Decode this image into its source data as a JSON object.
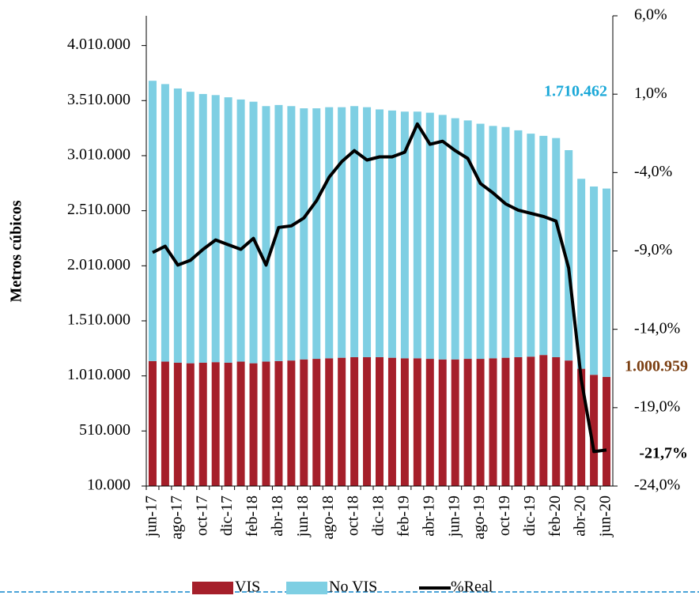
{
  "chart_data": {
    "type": "bar_line",
    "y_axis_label": "Metros cúbicos",
    "categories": [
      "jun-17",
      null,
      "ago-17",
      null,
      "oct-17",
      null,
      "dic-17",
      null,
      "feb-18",
      null,
      "abr-18",
      null,
      "jun-18",
      null,
      "ago-18",
      null,
      "oct-18",
      null,
      "dic-18",
      null,
      "feb-19",
      null,
      "abr-19",
      null,
      "jun-19",
      null,
      "ago-19",
      null,
      "oct-19",
      null,
      "dic-19",
      null,
      "feb-20",
      null,
      "abr-20",
      null,
      "jun-20"
    ],
    "series": [
      {
        "name": "VIS",
        "color": "#a51f2a",
        "stack": true,
        "values": [
          1145000,
          1140000,
          1130000,
          1125000,
          1130000,
          1135000,
          1130000,
          1140000,
          1125000,
          1140000,
          1145000,
          1150000,
          1160000,
          1165000,
          1170000,
          1175000,
          1180000,
          1180000,
          1180000,
          1175000,
          1170000,
          1170000,
          1165000,
          1160000,
          1160000,
          1165000,
          1165000,
          1170000,
          1175000,
          1180000,
          1185000,
          1200000,
          1180000,
          1150000,
          1075000,
          1020000,
          1000959
        ],
        "value_labels": [
          null,
          null,
          null,
          null,
          null,
          null,
          null,
          null,
          null,
          null,
          null,
          null,
          null,
          null,
          null,
          null,
          null,
          null,
          null,
          null,
          null,
          null,
          null,
          null,
          null,
          null,
          null,
          null,
          null,
          null,
          null,
          null,
          null,
          null,
          null,
          null,
          "1.000.959"
        ],
        "label_color": "#7b3f12"
      },
      {
        "name": "No VIS",
        "color": "#7ecfe3",
        "stack": true,
        "values": [
          2545000,
          2520000,
          2490000,
          2465000,
          2440000,
          2425000,
          2410000,
          2380000,
          2375000,
          2320000,
          2325000,
          2310000,
          2280000,
          2275000,
          2280000,
          2275000,
          2280000,
          2270000,
          2250000,
          2245000,
          2240000,
          2240000,
          2235000,
          2220000,
          2190000,
          2165000,
          2135000,
          2110000,
          2095000,
          2060000,
          2025000,
          1990000,
          1990000,
          1910000,
          1725000,
          1710000,
          1710462
        ],
        "value_labels": [
          null,
          null,
          null,
          null,
          null,
          null,
          null,
          null,
          null,
          null,
          null,
          null,
          null,
          null,
          null,
          null,
          null,
          null,
          null,
          null,
          null,
          null,
          null,
          null,
          null,
          null,
          null,
          null,
          null,
          null,
          null,
          null,
          null,
          null,
          null,
          null,
          "1.710.462"
        ],
        "label_color": "#1aa8d8"
      },
      {
        "name": "%Real",
        "color": "#000000",
        "axis": "y2",
        "line": true,
        "values": [
          -9.1,
          -8.7,
          -9.9,
          -9.6,
          -8.9,
          -8.3,
          -8.6,
          -8.9,
          -8.2,
          -9.9,
          -7.5,
          -7.4,
          -6.9,
          -5.8,
          -4.3,
          -3.3,
          -2.6,
          -3.2,
          -3.0,
          -3.0,
          -2.7,
          -0.9,
          -2.2,
          -2.0,
          -2.6,
          -3.1,
          -4.7,
          -5.3,
          -6.0,
          -6.4,
          -6.6,
          -6.8,
          -7.1,
          -10.1,
          -17.2,
          -21.8,
          -21.7
        ],
        "value_labels": [
          null,
          null,
          null,
          null,
          null,
          null,
          null,
          null,
          null,
          null,
          null,
          null,
          null,
          null,
          null,
          null,
          null,
          null,
          null,
          null,
          null,
          null,
          null,
          null,
          null,
          null,
          null,
          null,
          null,
          null,
          null,
          null,
          null,
          null,
          null,
          null,
          "-21,7%"
        ],
        "label_color": "#000000"
      }
    ],
    "ylim": [
      10000,
      4280000
    ],
    "yticks": [
      {
        "value": 10000,
        "label": "10.000"
      },
      {
        "value": 510000,
        "label": "510.000"
      },
      {
        "value": 1010000,
        "label": "1.010.000"
      },
      {
        "value": 1510000,
        "label": "1.510.000"
      },
      {
        "value": 2010000,
        "label": "2.010.000"
      },
      {
        "value": 2510000,
        "label": "2.510.000"
      },
      {
        "value": 3010000,
        "label": "3.010.000"
      },
      {
        "value": 3510000,
        "label": "3.510.000"
      },
      {
        "value": 4010000,
        "label": "4.010.000"
      }
    ],
    "y2lim": [
      -24,
      6
    ],
    "y2ticks": [
      {
        "value": -24,
        "label": "-24,0%"
      },
      {
        "value": -19,
        "label": "-19,0%"
      },
      {
        "value": -14,
        "label": "-14,0%"
      },
      {
        "value": -9,
        "label": "-9,0%"
      },
      {
        "value": -4,
        "label": "-4,0%"
      },
      {
        "value": 1,
        "label": "1,0%"
      },
      {
        "value": 6,
        "label": "6,0%"
      }
    ],
    "legend": "bottom"
  }
}
